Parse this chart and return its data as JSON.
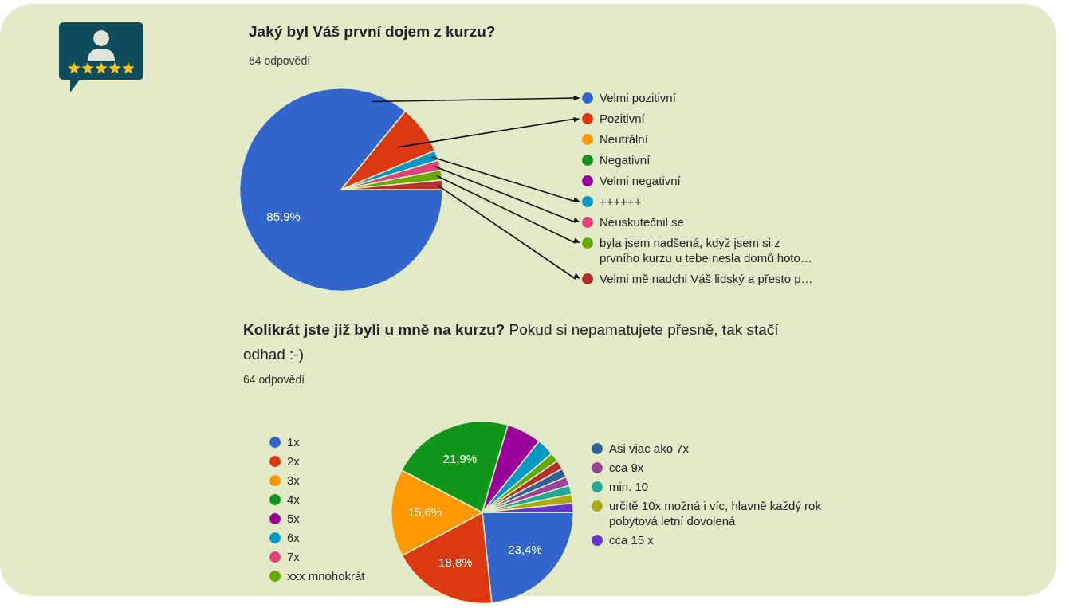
{
  "chart_data": [
    {
      "type": "pie",
      "title": "Jaký byl Váš první dojem z kurzu?",
      "subtitle": "64 odpovědí",
      "categories": [
        "Velmi pozitivní",
        "Pozitivní",
        "Neutrální",
        "Negativní",
        "Velmi negativní",
        "++++++",
        "Neuskutečnil se",
        "byla jsem nadšená, když jsem si z prvního kurzu u tebe nesla domů hoto…",
        "Velmi mě nadchl Váš lidský a přesto p…"
      ],
      "values": [
        85.9,
        7.8,
        0,
        0,
        0,
        1.6,
        1.6,
        1.6,
        1.5
      ],
      "colors": [
        "#3366cc",
        "#dc3912",
        "#ff9900",
        "#109618",
        "#990099",
        "#0099c6",
        "#dd4477",
        "#66aa00",
        "#b82e2e"
      ],
      "value_labels": [
        "85,9%",
        null,
        null,
        null,
        null,
        null,
        null,
        null,
        null
      ],
      "legend": "right"
    },
    {
      "type": "pie",
      "title": "Kolikrát jste již byli u mně na kurzu? Pokud si nepamatujete přesně, tak stačí odhad :-)",
      "subtitle": "64 odpovědí",
      "categories": [
        "1x",
        "2x",
        "3x",
        "4x",
        "5x",
        "6x",
        "7x",
        "xxx mnohokrát",
        null,
        "Asi viac ako 7x",
        "cca 9x",
        "min. 10",
        "určitě 10x možná i víc, hlavně každý rok pobytová letní dovolená",
        "cca 15 x"
      ],
      "values": [
        23.4,
        18.8,
        15.6,
        21.9,
        6.2,
        3.1,
        0,
        1.6,
        1.6,
        1.6,
        1.6,
        1.6,
        1.6,
        1.6
      ],
      "colors": [
        "#3366cc",
        "#dc3912",
        "#ff9900",
        "#109618",
        "#990099",
        "#0099c6",
        "#dd4477",
        "#66aa00",
        "#b82e2e",
        "#316395",
        "#994499",
        "#22aa99",
        "#aaaa11",
        "#6633cc"
      ],
      "value_labels": [
        "23,4%",
        "18,8%",
        "15,6%",
        "21,9%",
        null,
        null,
        null,
        null,
        null,
        null,
        null,
        null,
        null,
        null
      ],
      "legend": "right"
    }
  ]
}
